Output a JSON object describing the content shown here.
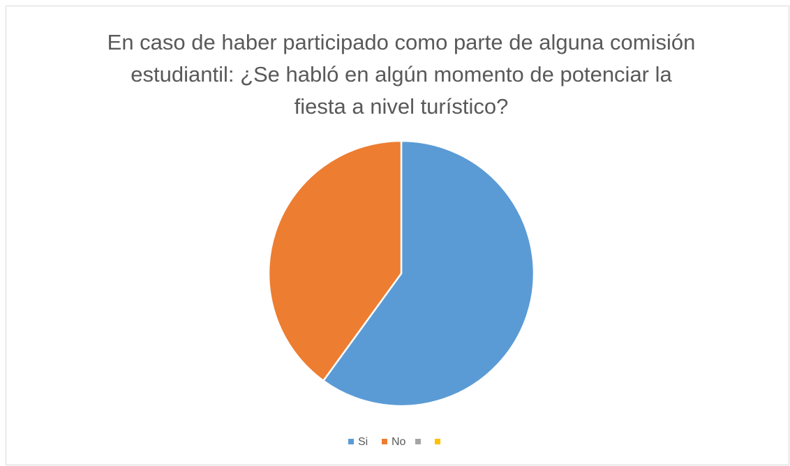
{
  "chart_data": {
    "type": "pie",
    "title": "En caso de haber participado como parte de alguna comisión estudiantil: ¿Se habló en algún momento de potenciar la fiesta a nivel turístico?",
    "categories": [
      "Si",
      "No",
      null,
      null
    ],
    "values": [
      60,
      40,
      0,
      0
    ],
    "colors": [
      "#5b9bd5",
      "#ed7d31",
      "#a5a5a5",
      "#ffc000"
    ],
    "legend": "bottom"
  }
}
